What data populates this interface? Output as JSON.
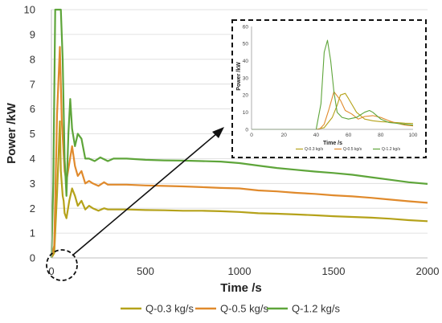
{
  "chart_data": [
    {
      "type": "line",
      "title": "",
      "xlabel": "Time /s",
      "ylabel": "Power /kW",
      "xlim": [
        0,
        2000
      ],
      "ylim": [
        0,
        10
      ],
      "xticks": [
        0,
        500,
        1000,
        1500,
        2000
      ],
      "yticks": [
        0,
        1,
        2,
        3,
        4,
        5,
        6,
        7,
        8,
        9,
        10
      ],
      "grid": "horizontal",
      "legend": "bottom",
      "series": [
        {
          "name": "Q-0.3 kg/s",
          "color": "#b5a21a",
          "x": [
            0,
            15,
            30,
            45,
            50,
            60,
            65,
            70,
            80,
            95,
            110,
            125,
            140,
            160,
            180,
            200,
            220,
            250,
            280,
            300,
            330,
            400,
            500,
            600,
            700,
            800,
            900,
            1000,
            1100,
            1200,
            1300,
            1400,
            1500,
            1600,
            1700,
            1800,
            1900,
            2000
          ],
          "y": [
            0,
            0.2,
            2.6,
            5.5,
            3.5,
            2.5,
            2.3,
            1.8,
            1.6,
            2.3,
            2.8,
            2.5,
            2.1,
            2.3,
            1.95,
            2.1,
            2.0,
            1.9,
            2.0,
            1.95,
            1.95,
            1.95,
            1.93,
            1.92,
            1.9,
            1.9,
            1.88,
            1.85,
            1.8,
            1.78,
            1.75,
            1.72,
            1.68,
            1.65,
            1.62,
            1.58,
            1.52,
            1.48
          ]
        },
        {
          "name": "Q-0.5 kg/s",
          "color": "#e08a2c",
          "x": [
            0,
            15,
            30,
            45,
            55,
            70,
            80,
            95,
            110,
            125,
            140,
            160,
            180,
            200,
            220,
            250,
            280,
            300,
            330,
            400,
            500,
            600,
            700,
            800,
            900,
            1000,
            1100,
            1200,
            1300,
            1400,
            1500,
            1600,
            1700,
            1800,
            1900,
            2000
          ],
          "y": [
            0,
            0.5,
            5.8,
            8.5,
            5.5,
            3.5,
            3.1,
            3.8,
            4.5,
            3.7,
            3.3,
            3.5,
            3.0,
            3.1,
            3.0,
            2.9,
            3.05,
            2.95,
            2.95,
            2.95,
            2.92,
            2.9,
            2.88,
            2.85,
            2.82,
            2.8,
            2.72,
            2.68,
            2.62,
            2.58,
            2.52,
            2.48,
            2.42,
            2.35,
            2.28,
            2.22
          ]
        },
        {
          "name": "Q-1.2 kg/s",
          "color": "#5ea53a",
          "x": [
            0,
            10,
            20,
            30,
            40,
            50,
            60,
            70,
            80,
            90,
            100,
            110,
            125,
            140,
            160,
            180,
            200,
            230,
            260,
            300,
            330,
            400,
            500,
            600,
            700,
            800,
            900,
            1000,
            1100,
            1200,
            1300,
            1400,
            1500,
            1600,
            1700,
            1800,
            1900,
            2000
          ],
          "y": [
            0,
            3,
            10,
            10,
            10,
            10,
            8,
            4,
            2.5,
            5,
            6.4,
            5.2,
            4.5,
            5,
            4.8,
            4.0,
            4.0,
            3.9,
            4.05,
            3.9,
            4.0,
            4.0,
            3.95,
            3.93,
            3.92,
            3.9,
            3.88,
            3.82,
            3.72,
            3.62,
            3.55,
            3.48,
            3.42,
            3.35,
            3.25,
            3.15,
            3.05,
            2.98
          ]
        }
      ],
      "annotation": "dashed circle near origin with arrow pointing to inset (zoomed view of the first 100 s)"
    },
    {
      "type": "line",
      "title": "",
      "xlabel": "Time /s",
      "ylabel": "Power /kW",
      "xlim": [
        0,
        100
      ],
      "ylim": [
        0,
        60
      ],
      "xticks": [
        0,
        20,
        40,
        60,
        80,
        100
      ],
      "yticks": [
        0,
        10,
        20,
        30,
        40,
        50,
        60
      ],
      "grid": "none",
      "legend": "bottom",
      "series": [
        {
          "name": "Q-0.3 kg/s",
          "color": "#b5a21a",
          "x": [
            0,
            40,
            45,
            50,
            53,
            55,
            58,
            60,
            65,
            70,
            75,
            80,
            85,
            90,
            95,
            100
          ],
          "y": [
            0,
            0,
            1,
            7,
            14,
            20,
            21,
            18,
            10,
            6,
            5,
            4.5,
            4.2,
            4,
            3.6,
            3.4
          ]
        },
        {
          "name": "Q-0.5 kg/s",
          "color": "#e08a2c",
          "x": [
            0,
            42,
            45,
            48,
            51,
            55,
            58,
            62,
            66,
            70,
            75,
            80,
            85,
            90,
            95,
            100
          ],
          "y": [
            0,
            0,
            3,
            12,
            22,
            17,
            11,
            9,
            6,
            7.5,
            8,
            7,
            5,
            3.5,
            2.5,
            2
          ]
        },
        {
          "name": "Q-1.2 kg/s",
          "color": "#5ea53a",
          "x": [
            0,
            40,
            43,
            45,
            47,
            49,
            51,
            53,
            56,
            60,
            65,
            70,
            73,
            75,
            80,
            85,
            90,
            95,
            100
          ],
          "y": [
            0,
            0,
            15,
            45,
            52,
            40,
            22,
            10,
            7,
            6,
            7,
            10,
            11,
            10,
            6,
            4,
            3.5,
            3,
            2.5
          ]
        }
      ]
    }
  ],
  "legend": [
    {
      "label": "Q-0.3 kg/s",
      "color": "#b5a21a"
    },
    {
      "label": "Q-0.5 kg/s",
      "color": "#e08a2c"
    },
    {
      "label": "Q-1.2 kg/s",
      "color": "#5ea53a"
    }
  ]
}
